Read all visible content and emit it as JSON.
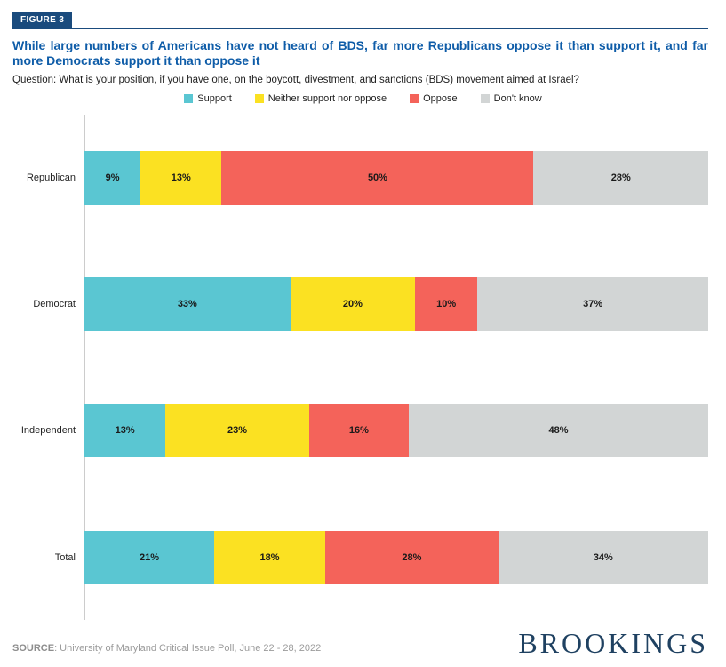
{
  "figure_badge": "FIGURE 3",
  "title": "While large numbers of Americans have not heard of BDS, far more Republicans oppose it than support it, and far more Democrats support it than oppose it",
  "question": "Question: What is your position, if you have one, on the boycott, divestment, and sanctions (BDS) movement aimed at Israel?",
  "source_label": "SOURCE",
  "source_text": ": University of Maryland Critical Issue Poll, June 22 - 28, 2022",
  "logo_text": "BROOKINGS",
  "colors": {
    "badge_navy": "#1A4B7D",
    "title_blue": "#0E5CA8",
    "logo_navy": "#1F4161",
    "axis_gray": "#CCCCCC",
    "support_teal": "#5AC6D2",
    "neither_yellow": "#FBE122",
    "oppose_red": "#F4635A",
    "dont_know_gray": "#D2D5D5"
  },
  "chart_data": {
    "type": "bar",
    "orientation": "horizontal",
    "stacked": true,
    "title": "While large numbers of Americans have not heard of BDS, far more Republicans oppose it than support it, and far more Democrats support it than oppose it",
    "categories": [
      "Republican",
      "Democrat",
      "Independent",
      "Total"
    ],
    "series": [
      {
        "name": "Support",
        "color": "#5AC6D2",
        "values": [
          9,
          33,
          13,
          21
        ]
      },
      {
        "name": "Neither support nor oppose",
        "color": "#FBE122",
        "values": [
          13,
          20,
          23,
          18
        ]
      },
      {
        "name": "Oppose",
        "color": "#F4635A",
        "values": [
          50,
          10,
          16,
          28
        ]
      },
      {
        "name": "Don't know",
        "color": "#D2D5D5",
        "values": [
          28,
          37,
          48,
          34
        ]
      }
    ],
    "value_suffix": "%",
    "xlim": [
      0,
      100
    ],
    "grid": false,
    "legend_position": "top-center",
    "data_labels": "inside-center"
  }
}
